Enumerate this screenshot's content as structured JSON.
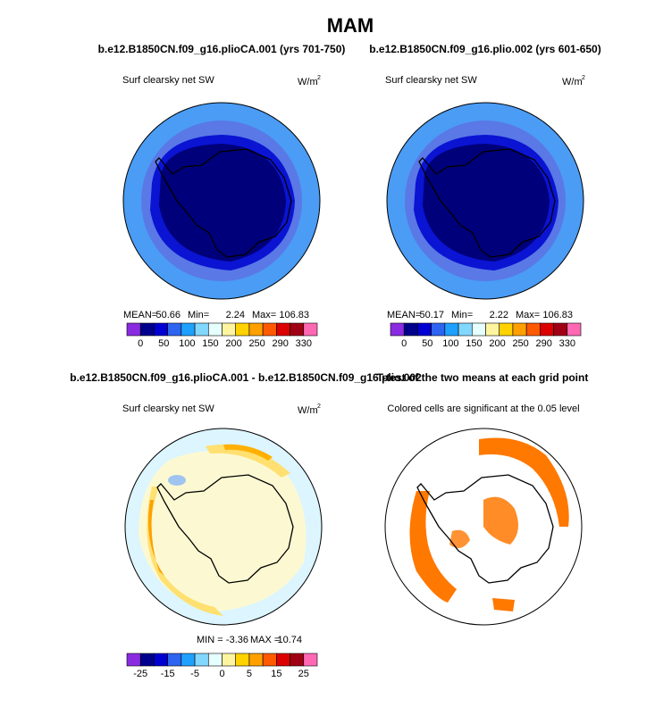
{
  "title": "MAM",
  "panels": [
    {
      "title": "b.e12.B1850CN.f09_g16.plioCA.001 (yrs 701-750)",
      "left_label": "Surf clearsky net SW",
      "units": "W/m",
      "units_sup": "2",
      "stats": [
        "MEAN=",
        "50.66",
        "Min=",
        "2.24",
        "Max=",
        "106.83"
      ]
    },
    {
      "title": "b.e12.B1850CN.f09_g16.plio.002 (yrs 601-650)",
      "left_label": "Surf clearsky net SW",
      "units": "W/m",
      "units_sup": "2",
      "stats": [
        "MEAN=",
        "50.17",
        "Min=",
        "2.22",
        "Max=",
        "106.83"
      ]
    },
    {
      "title": "b.e12.B1850CN.f09_g16.plioCA.001 - b.e12.B1850CN.f09_g16.plio.002",
      "left_label": "Surf clearsky net SW",
      "units": "W/m",
      "units_sup": "2",
      "stats": [
        "MIN =",
        "-3.36",
        "MAX =",
        "10.74"
      ]
    },
    {
      "title": "T-test of the two means at each grid point",
      "center_label": "Colored cells are significant at the 0.05 level"
    }
  ],
  "colorbars": [
    {
      "colors": [
        "#8a2be2",
        "#00008c",
        "#0000d2",
        "#2d64f0",
        "#1ea0ff",
        "#82d7ff",
        "#e6ffff",
        "#fff5a0",
        "#ffd200",
        "#ffa000",
        "#ff5a00",
        "#dc0000",
        "#a00014",
        "#ff69b4"
      ],
      "labels": [
        "0",
        "50",
        "100",
        "150",
        "200",
        "250",
        "290",
        "330"
      ]
    },
    {
      "colors": [
        "#8a2be2",
        "#00008c",
        "#0000d2",
        "#2d64f0",
        "#1ea0ff",
        "#82d7ff",
        "#e6ffff",
        "#fff5a0",
        "#ffd200",
        "#ffa000",
        "#ff5a00",
        "#dc0000",
        "#a00014",
        "#ff69b4"
      ],
      "labels": [
        "0",
        "50",
        "100",
        "150",
        "200",
        "250",
        "290",
        "330"
      ]
    },
    {
      "colors": [
        "#8a2be2",
        "#00008c",
        "#0000d2",
        "#2d64f0",
        "#1ea0ff",
        "#82d7ff",
        "#e6ffff",
        "#fff5a0",
        "#ffd200",
        "#ffa000",
        "#ff5a00",
        "#dc0000",
        "#a00014",
        "#ff69b4"
      ],
      "labels": [
        "-25",
        "-15",
        "-5",
        "0",
        "5",
        "15",
        "25"
      ]
    }
  ]
}
